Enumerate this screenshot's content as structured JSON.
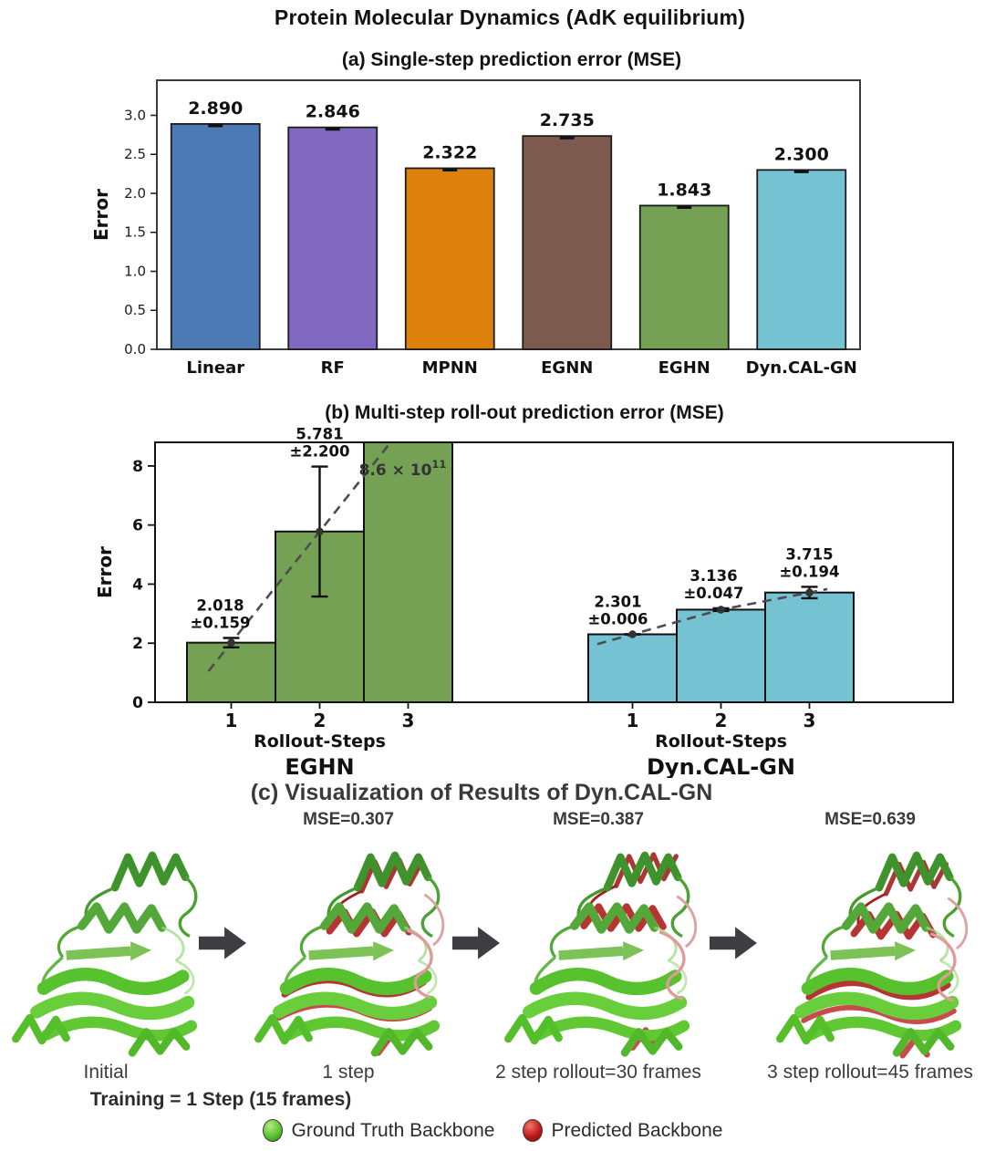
{
  "figure_title": "Protein Molecular Dynamics (AdK equilibrium)",
  "chart_data": [
    {
      "id": "panel_a",
      "type": "bar",
      "title": "(a) Single-step prediction error (MSE)",
      "ylabel": "Error",
      "categories": [
        "Linear",
        "RF",
        "MPNN",
        "EGNN",
        "EGHN",
        "Dyn.CAL-GN"
      ],
      "values": [
        2.89,
        2.846,
        2.322,
        2.735,
        1.843,
        2.3
      ],
      "bar_colors": [
        "#4d79b5",
        "#8169c1",
        "#de810c",
        "#7d5a4e",
        "#74a153",
        "#75c2d2"
      ],
      "yticks": [
        0.0,
        0.5,
        1.0,
        1.5,
        2.0,
        2.5,
        3.0
      ],
      "ylim": [
        0,
        3.45
      ],
      "grid": false,
      "legend_position": "none"
    },
    {
      "id": "panel_b",
      "type": "grouped_bar_with_trend",
      "title": "(b) Multi-step roll-out prediction error (MSE)",
      "ylabel": "Error",
      "xlabel": "Rollout-Steps",
      "yticks": [
        0,
        2,
        4,
        6,
        8
      ],
      "ylim": [
        0,
        8.8
      ],
      "grid": false,
      "groups": [
        {
          "name": "EGHN",
          "color": "#74a153",
          "steps": [
            "1",
            "2",
            "3"
          ],
          "values": [
            2.018,
            5.781,
            null
          ],
          "errors": [
            0.159,
            2.2,
            null
          ],
          "overflow_bar_index": 2,
          "overflow_label": {
            "mantissa": "8.6 × 10",
            "exponent": "11",
            "display": "8.6 × 10^11"
          }
        },
        {
          "name": "Dyn.CAL-GN",
          "color": "#75c2d2",
          "steps": [
            "1",
            "2",
            "3"
          ],
          "values": [
            2.301,
            3.136,
            3.715
          ],
          "errors": [
            0.006,
            0.047,
            0.194
          ]
        }
      ]
    }
  ],
  "panel_c": {
    "title": "(c) Visualization of Results of Dyn.CAL-GN",
    "items": [
      {
        "caption": "Initial",
        "mse": ""
      },
      {
        "caption": "1 step",
        "mse": "MSE=0.307"
      },
      {
        "caption": "2 step rollout=30 frames",
        "mse": "MSE=0.387"
      },
      {
        "caption": "3 step rollout=45 frames",
        "mse": "MSE=0.639"
      }
    ],
    "training_note": "Training = 1 Step (15 frames)",
    "legend": [
      {
        "label": "Ground Truth Backbone",
        "color": "#5cc430"
      },
      {
        "label": "Predicted Backbone",
        "color": "#c01818"
      }
    ]
  }
}
